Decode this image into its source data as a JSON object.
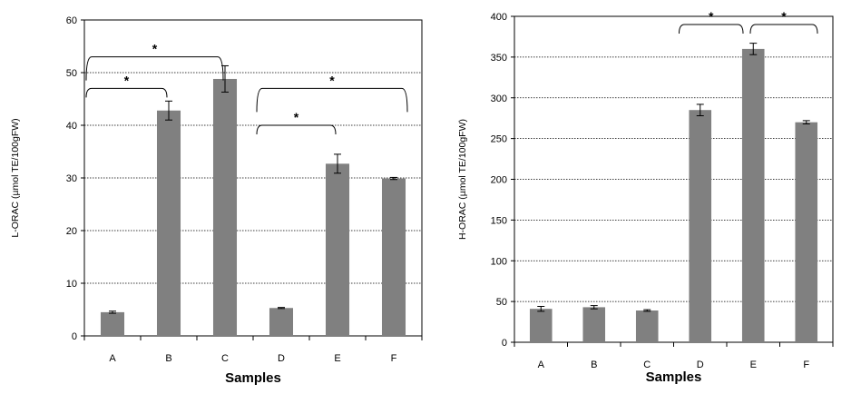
{
  "chart_data": [
    {
      "type": "bar",
      "title": "",
      "xlabel": "Samples",
      "ylabel": "L-ORAC (µmol TE/100gFW)",
      "categories": [
        "A",
        "B",
        "C",
        "D",
        "E",
        "F"
      ],
      "values": [
        4.5,
        42.8,
        48.8,
        5.3,
        32.7,
        29.9
      ],
      "errors": [
        0.2,
        1.8,
        2.5,
        0.1,
        1.8,
        0.2
      ],
      "yticks": [
        "0",
        "10",
        "20",
        "30",
        "40",
        "50",
        "60"
      ],
      "ylim": [
        0,
        60
      ],
      "grid": "horizontal dotted",
      "bar_color": "#808080",
      "significance": [
        {
          "from": "A",
          "to": "B",
          "level": 47.0,
          "label": "*"
        },
        {
          "from": "A",
          "to": "C",
          "level": 53.0,
          "label": "*"
        },
        {
          "from": "D",
          "to": "E",
          "level": 40.0,
          "label": "*"
        },
        {
          "from": "D",
          "to": "F",
          "level": 47.0,
          "label": "*"
        }
      ]
    },
    {
      "type": "bar",
      "title": "",
      "xlabel": "Samples",
      "ylabel": "H-ORAC (µmol TE/100gFW)",
      "categories": [
        "A",
        "B",
        "C",
        "D",
        "E",
        "F"
      ],
      "values": [
        41,
        43,
        39,
        285,
        360,
        270
      ],
      "errors": [
        3,
        2,
        1,
        7,
        7,
        2
      ],
      "yticks": [
        "0",
        "50",
        "100",
        "150",
        "200",
        "250",
        "300",
        "350",
        "400"
      ],
      "ylim": [
        0,
        400
      ],
      "grid": "horizontal dotted",
      "bar_color": "#808080",
      "significance": [
        {
          "from": "D",
          "to": "E",
          "level": 390,
          "label": "*"
        },
        {
          "from": "E",
          "to": "F",
          "level": 390,
          "label": "*"
        }
      ]
    }
  ]
}
